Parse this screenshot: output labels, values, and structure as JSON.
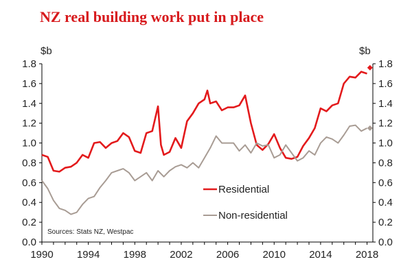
{
  "chart_data": {
    "type": "line",
    "title": "NZ real building work put in place",
    "ylabel_left": "$b",
    "ylabel_right": "$b",
    "source": "Sources: Stats NZ, Westpac",
    "ylim": [
      0,
      1.8
    ],
    "xlim": [
      1990,
      2018.5
    ],
    "y_ticks": [
      "0.0",
      "0.2",
      "0.4",
      "0.6",
      "0.8",
      "1.0",
      "1.2",
      "1.4",
      "1.6",
      "1.8"
    ],
    "x_ticks": [
      "1990",
      "1994",
      "1998",
      "2002",
      "2006",
      "2010",
      "2014",
      "2018"
    ],
    "colors": {
      "residential": "#e31a1c",
      "nonresidential": "#a89c94",
      "axis": "#000000",
      "title": "#d7191c"
    },
    "series": [
      {
        "name": "Residential",
        "x": [
          1990.0,
          1990.5,
          1991.0,
          1991.5,
          1992.0,
          1992.5,
          1993.0,
          1993.5,
          1994.0,
          1994.5,
          1995.0,
          1995.5,
          1996.0,
          1996.5,
          1997.0,
          1997.5,
          1998.0,
          1998.5,
          1999.0,
          1999.5,
          2000.0,
          2000.25,
          2000.5,
          2001.0,
          2001.5,
          2002.0,
          2002.5,
          2003.0,
          2003.5,
          2004.0,
          2004.25,
          2004.5,
          2005.0,
          2005.5,
          2006.0,
          2006.5,
          2007.0,
          2007.5,
          2008.0,
          2008.5,
          2009.0,
          2009.5,
          2010.0,
          2010.5,
          2011.0,
          2011.5,
          2012.0,
          2012.5,
          2013.0,
          2013.5,
          2014.0,
          2014.5,
          2015.0,
          2015.5,
          2016.0,
          2016.5,
          2017.0,
          2017.5,
          2018.0
        ],
        "values": [
          0.88,
          0.86,
          0.72,
          0.71,
          0.75,
          0.76,
          0.8,
          0.88,
          0.85,
          1.0,
          1.01,
          0.95,
          1.0,
          1.02,
          1.1,
          1.06,
          0.92,
          0.9,
          1.1,
          1.12,
          1.37,
          0.98,
          0.88,
          0.91,
          1.05,
          0.95,
          1.22,
          1.3,
          1.4,
          1.44,
          1.53,
          1.4,
          1.42,
          1.33,
          1.36,
          1.36,
          1.38,
          1.48,
          1.2,
          0.98,
          0.93,
          0.99,
          1.09,
          0.95,
          0.85,
          0.84,
          0.86,
          0.97,
          1.05,
          1.15,
          1.35,
          1.32,
          1.38,
          1.4,
          1.6,
          1.67,
          1.66,
          1.72,
          1.7
        ]
      },
      {
        "name": "Non-residential",
        "x": [
          1990.0,
          1990.5,
          1991.0,
          1991.5,
          1992.0,
          1992.5,
          1993.0,
          1993.5,
          1994.0,
          1994.5,
          1995.0,
          1995.5,
          1996.0,
          1996.5,
          1997.0,
          1997.5,
          1998.0,
          1998.5,
          1999.0,
          1999.5,
          2000.0,
          2000.5,
          2001.0,
          2001.5,
          2002.0,
          2002.5,
          2003.0,
          2003.5,
          2004.0,
          2004.5,
          2005.0,
          2005.5,
          2006.0,
          2006.5,
          2007.0,
          2007.5,
          2008.0,
          2008.5,
          2009.0,
          2009.5,
          2010.0,
          2010.5,
          2011.0,
          2011.5,
          2012.0,
          2012.5,
          2013.0,
          2013.5,
          2014.0,
          2014.5,
          2015.0,
          2015.5,
          2016.0,
          2016.5,
          2017.0,
          2017.5,
          2018.0
        ],
        "values": [
          0.62,
          0.54,
          0.42,
          0.34,
          0.32,
          0.28,
          0.3,
          0.38,
          0.44,
          0.46,
          0.55,
          0.62,
          0.7,
          0.72,
          0.74,
          0.7,
          0.62,
          0.66,
          0.7,
          0.62,
          0.72,
          0.66,
          0.72,
          0.76,
          0.78,
          0.75,
          0.8,
          0.75,
          0.85,
          0.95,
          1.07,
          1.0,
          1.0,
          1.0,
          0.92,
          0.98,
          0.9,
          1.0,
          0.97,
          0.98,
          0.85,
          0.88,
          0.98,
          0.9,
          0.82,
          0.85,
          0.92,
          0.88,
          1.0,
          1.06,
          1.04,
          1.0,
          1.08,
          1.17,
          1.18,
          1.12,
          1.15
        ]
      }
    ],
    "markers": [
      {
        "series": "Residential",
        "x": 2018.25,
        "value": 1.76
      },
      {
        "series": "Non-residential",
        "x": 2018.25,
        "value": 1.15
      }
    ]
  }
}
